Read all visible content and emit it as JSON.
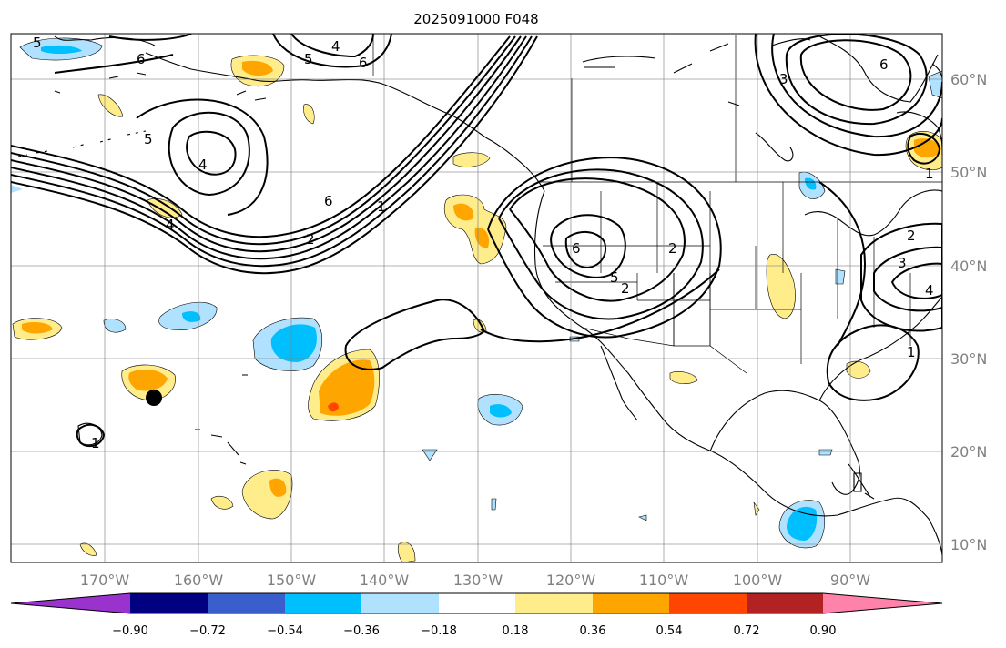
{
  "title": "2025091000 F048",
  "map": {
    "lon_ticks": [
      "170°W",
      "160°W",
      "150°W",
      "140°W",
      "130°W",
      "120°W",
      "110°W",
      "100°W",
      "90°W"
    ],
    "lat_ticks": [
      "60°N",
      "50°N",
      "40°N",
      "30°N",
      "20°N",
      "10°N"
    ],
    "marker": "storm-center-dot",
    "contour_labels": [
      "5",
      "6",
      "4",
      "5",
      "6",
      "6",
      "5",
      "4",
      "6",
      "2",
      "1",
      "6",
      "5",
      "2",
      "2",
      "3",
      "4",
      "1",
      "1",
      "1",
      "4",
      "2",
      "3"
    ]
  },
  "colorbar": {
    "ticks": [
      "−0.90",
      "−0.72",
      "−0.54",
      "−0.36",
      "−0.18",
      "0.18",
      "0.36",
      "0.54",
      "0.72",
      "0.90"
    ],
    "colors": [
      "#9a32cd",
      "#000080",
      "#3a5fcd",
      "#00bfff",
      "#b0e2ff",
      "#ffffff",
      "#ffec8b",
      "#ffa500",
      "#ff4500",
      "#b22222",
      "#ff82ab"
    ]
  }
}
